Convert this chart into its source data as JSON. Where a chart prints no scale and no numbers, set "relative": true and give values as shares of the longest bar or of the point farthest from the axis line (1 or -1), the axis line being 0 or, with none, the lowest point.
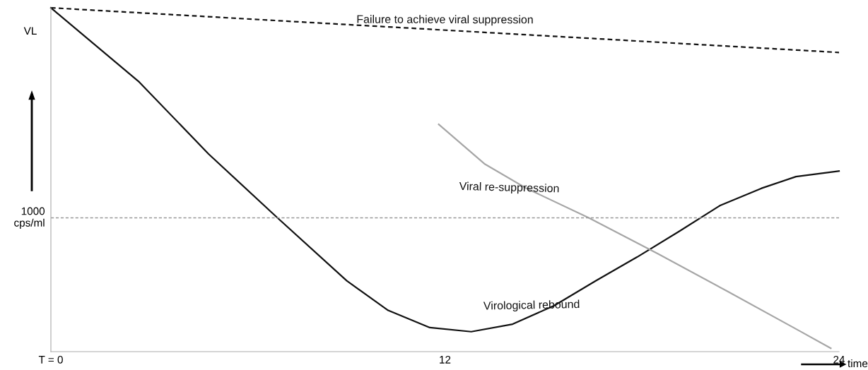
{
  "chart_data": {
    "type": "line",
    "relative": true,
    "xlabel": "time",
    "ylabel": "VL",
    "xlim": [
      0,
      24
    ],
    "xticks": [
      {
        "value": 0,
        "label": "T = 0"
      },
      12,
      24
    ],
    "tick_labels": "x",
    "grid": false,
    "legend": false,
    "marker": "none",
    "series": [
      {
        "name": "Failure to achieve viral suppression",
        "color": "#111111",
        "line_style": "dashed",
        "x": [
          0,
          24
        ],
        "values": [
          1.0,
          0.87
        ]
      },
      {
        "name": "Virological rebound",
        "color": "#111111",
        "line_style": "solid",
        "x": [
          0,
          2.69,
          4.8,
          6.9,
          9.01,
          10.27,
          11.54,
          12.8,
          14.06,
          15.33,
          16.59,
          17.85,
          19.12,
          20.38,
          21.64,
          22.69,
          24
        ],
        "values": [
          1.0,
          0.784,
          0.575,
          0.389,
          0.206,
          0.12,
          0.07,
          0.058,
          0.08,
          0.134,
          0.206,
          0.275,
          0.349,
          0.425,
          0.475,
          0.509,
          0.525
        ]
      },
      {
        "name": "Viral re-suppression",
        "color": "#a6a6a6",
        "line_style": "solid",
        "x": [
          11.81,
          13.22,
          14.48,
          16.38,
          18.48,
          20.59,
          22.69,
          23.75
        ],
        "values": [
          0.661,
          0.545,
          0.475,
          0.389,
          0.285,
          0.176,
          0.066,
          0.01
        ]
      }
    ],
    "ref_lines": [
      {
        "axis": "y",
        "value": 0.389,
        "label": "1000\ncps/ml",
        "color": "#999999",
        "line_style": "dashed"
      }
    ]
  }
}
